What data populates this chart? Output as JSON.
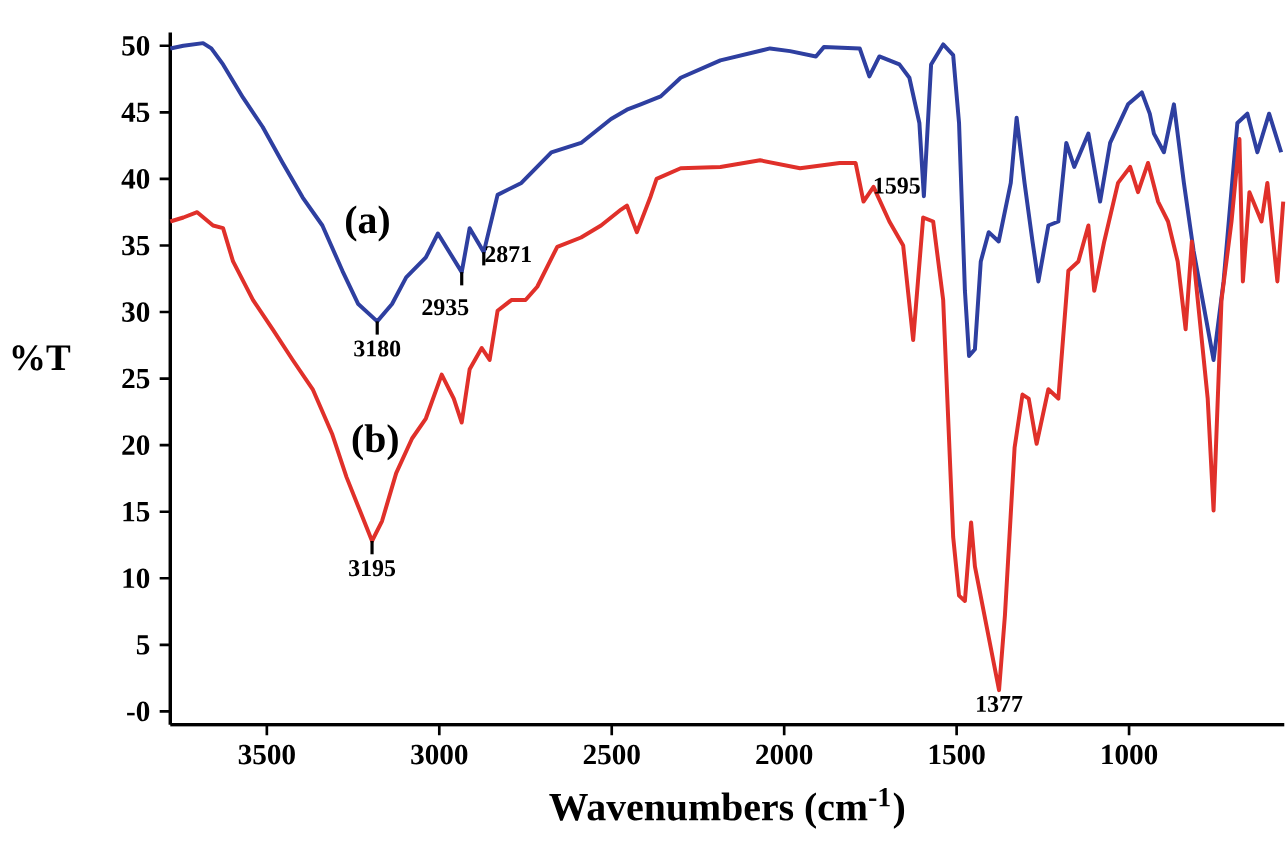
{
  "chart_data": {
    "type": "line",
    "xlabel": "Wavenumbers (cm$^{-1}$)",
    "ylabel": "%T",
    "xlim": [
      3780,
      550
    ],
    "ylim": [
      -1,
      51
    ],
    "xticks": [
      3500,
      3000,
      2500,
      2000,
      1500,
      1000
    ],
    "yticks": [
      {
        "value": 0,
        "label": "-0"
      },
      5,
      10,
      15,
      20,
      25,
      30,
      35,
      40,
      45,
      50
    ],
    "series": [
      {
        "name": "(a)",
        "color": "#2e3fa0",
        "x": [
          3780,
          3742,
          3685,
          3661,
          3627,
          3569,
          3512,
          3454,
          3396,
          3339,
          3281,
          3235,
          3180,
          3137,
          3096,
          3039,
          3004,
          2935,
          2912,
          2871,
          2831,
          2762,
          2675,
          2589,
          2502,
          2456,
          2416,
          2358,
          2300,
          2185,
          2041,
          1983,
          1908,
          1885,
          1781,
          1753,
          1724,
          1666,
          1637,
          1608,
          1595,
          1574,
          1539,
          1510,
          1493,
          1476,
          1464,
          1447,
          1430,
          1407,
          1378,
          1343,
          1326,
          1303,
          1280,
          1263,
          1234,
          1205,
          1182,
          1159,
          1118,
          1084,
          1055,
          1003,
          963,
          940,
          928,
          899,
          870,
          841,
          813,
          755,
          726,
          686,
          657,
          628,
          594,
          559
        ],
        "values": [
          49.8,
          50,
          50.2,
          49.8,
          48.6,
          46.1,
          43.9,
          41.2,
          38.6,
          36.5,
          33.1,
          30.6,
          29.3,
          30.6,
          32.6,
          34.1,
          35.9,
          33.0,
          36.3,
          34.5,
          38.8,
          39.7,
          42,
          42.7,
          44.5,
          45.2,
          45.6,
          46.2,
          47.6,
          48.9,
          49.8,
          49.6,
          49.2,
          49.9,
          49.8,
          47.7,
          49.2,
          48.6,
          47.6,
          44.2,
          38.7,
          48.6,
          50.1,
          49.3,
          44.2,
          31.6,
          26.7,
          27.2,
          33.8,
          36,
          35.3,
          39.7,
          44.6,
          39.7,
          35.3,
          32.3,
          36.5,
          36.8,
          42.7,
          40.9,
          43.4,
          38.3,
          42.7,
          45.6,
          46.5,
          44.9,
          43.4,
          42,
          45.6,
          39.7,
          34.6,
          26.4,
          32.3,
          44.2,
          44.9,
          42,
          44.9,
          42
        ]
      },
      {
        "name": "(b)",
        "color": "#e0302a",
        "x": [
          3780,
          3742,
          3702,
          3656,
          3627,
          3598,
          3540,
          3483,
          3425,
          3367,
          3310,
          3269,
          3235,
          3195,
          3166,
          3125,
          3079,
          3039,
          2993,
          2958,
          2935,
          2912,
          2877,
          2854,
          2831,
          2791,
          2750,
          2716,
          2658,
          2589,
          2531,
          2473,
          2456,
          2439,
          2427,
          2387,
          2370,
          2300,
          2185,
          2070,
          1954,
          1839,
          1793,
          1770,
          1741,
          1695,
          1655,
          1626,
          1597,
          1568,
          1539,
          1510,
          1493,
          1476,
          1458,
          1447,
          1377,
          1360,
          1332,
          1309,
          1291,
          1268,
          1234,
          1205,
          1176,
          1147,
          1118,
          1101,
          1072,
          1032,
          997,
          974,
          945,
          916,
          887,
          859,
          836,
          818,
          772,
          755,
          732,
          703,
          680,
          670,
          651,
          616,
          599,
          570,
          553
        ],
        "values": [
          36.8,
          37.1,
          37.5,
          36.5,
          36.3,
          33.8,
          30.9,
          28.7,
          26.4,
          24.2,
          20.8,
          17.6,
          15.4,
          12.8,
          14.3,
          17.9,
          20.5,
          22,
          25.3,
          23.5,
          21.7,
          25.7,
          27.3,
          26.4,
          30.1,
          30.9,
          30.9,
          31.9,
          34.9,
          35.6,
          36.5,
          37.7,
          38,
          36.8,
          36,
          38.7,
          40,
          40.8,
          40.9,
          41.4,
          40.8,
          41.2,
          41.2,
          38.3,
          39.4,
          36.8,
          35,
          27.9,
          37.1,
          36.8,
          30.9,
          13.1,
          8.7,
          8.3,
          14.2,
          10.9,
          1.6,
          7.2,
          19.8,
          23.8,
          23.5,
          20.1,
          24.2,
          23.5,
          33.1,
          33.8,
          36.5,
          31.6,
          35.3,
          39.7,
          40.9,
          39,
          41.2,
          38.3,
          36.8,
          33.8,
          28.7,
          35.3,
          23.5,
          15.1,
          30.9,
          36.8,
          43,
          32.3,
          39,
          36.8,
          39.7,
          32.3,
          38.3
        ]
      }
    ],
    "annotations": [
      {
        "text": "3180",
        "x": 3180,
        "y": 29.3
      },
      {
        "text": "2935",
        "x": 2935,
        "y": 33.0
      },
      {
        "text": "2871",
        "x": 2871,
        "y": 34.5
      },
      {
        "text": "1595",
        "x": 1595,
        "y": 38.7
      },
      {
        "text": "3195",
        "x": 3195,
        "y": 12.8
      },
      {
        "text": "1377",
        "x": 1377,
        "y": 1.6
      }
    ]
  }
}
